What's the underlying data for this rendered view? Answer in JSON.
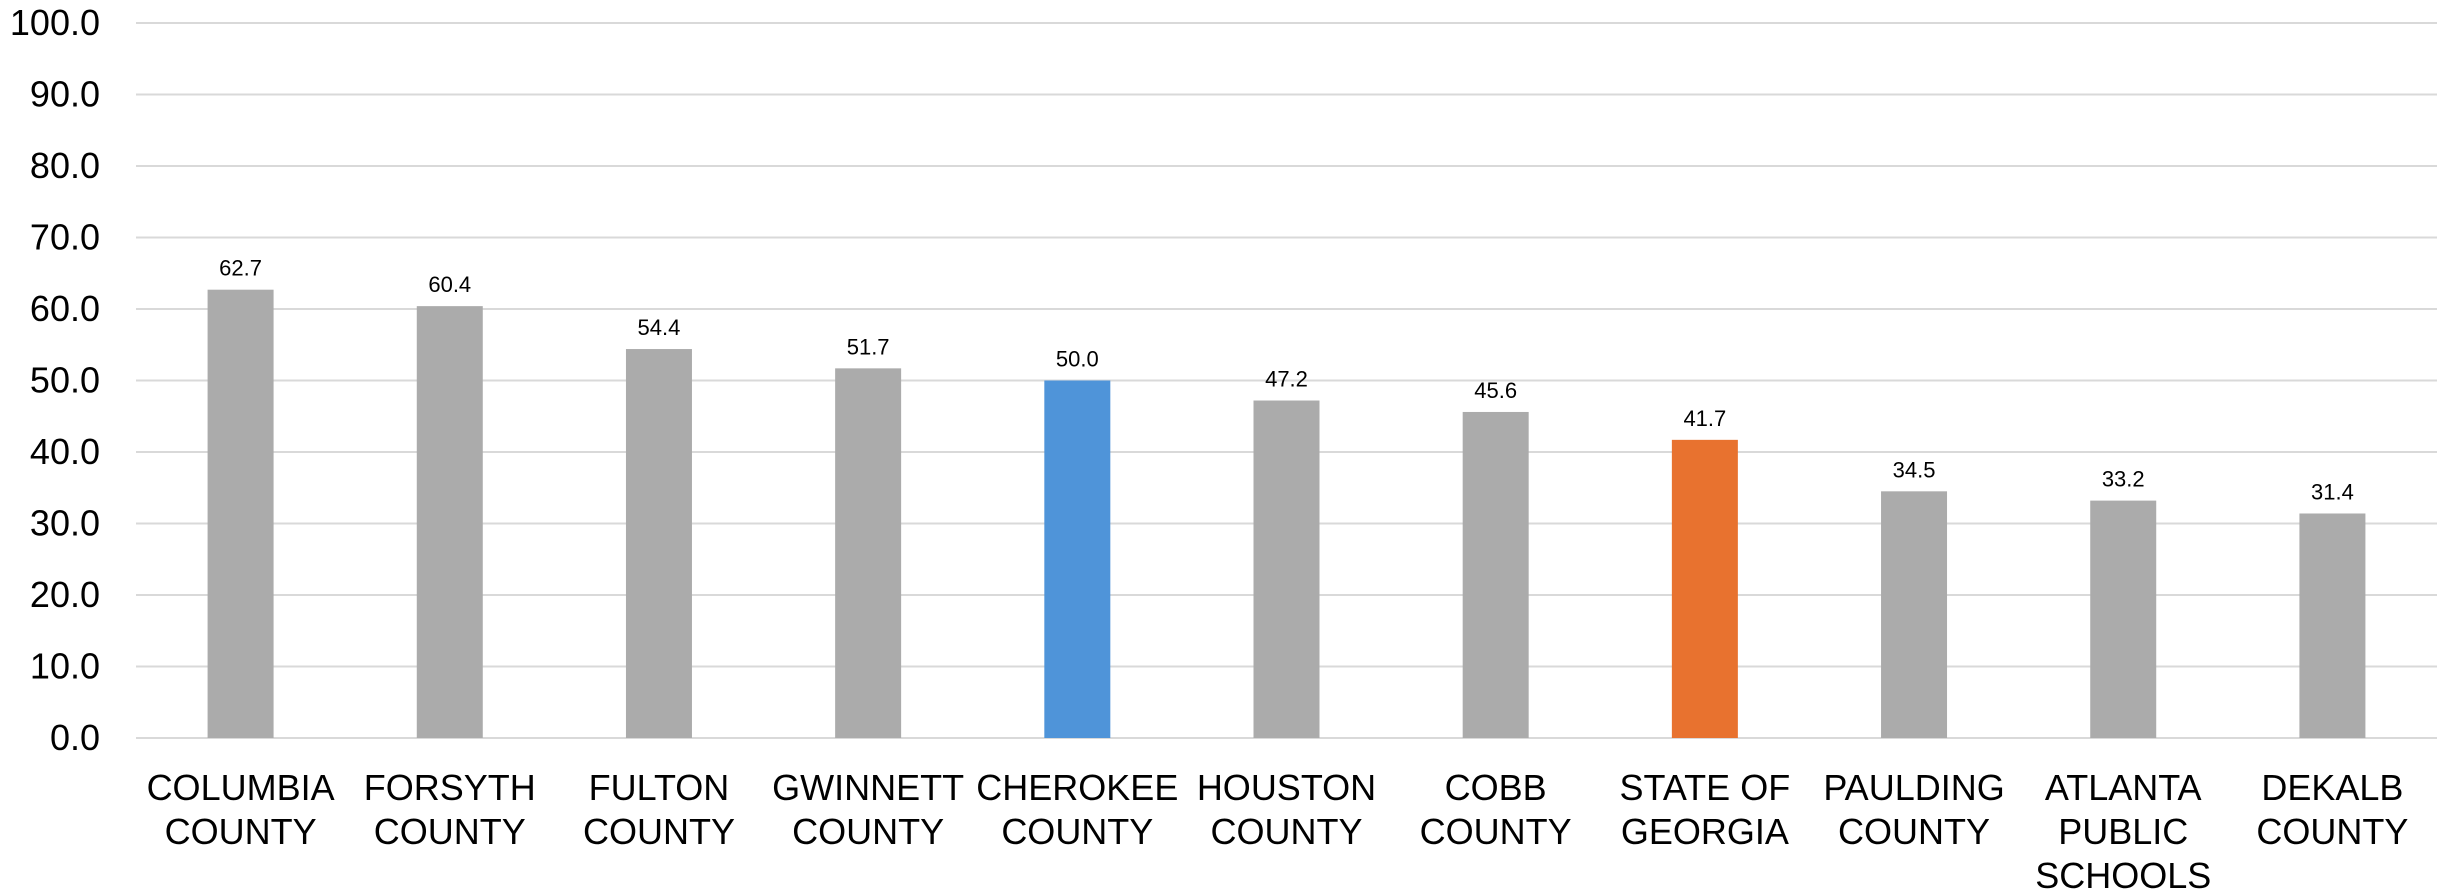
{
  "chart_data": {
    "type": "bar",
    "title": "",
    "xlabel": "",
    "ylabel": "",
    "ylim": [
      0,
      100
    ],
    "y_ticks": [
      "0.0",
      "10.0",
      "20.0",
      "30.0",
      "40.0",
      "50.0",
      "60.0",
      "70.0",
      "80.0",
      "90.0",
      "100.0"
    ],
    "grid": true,
    "categories": [
      [
        "COLUMBIA",
        "COUNTY"
      ],
      [
        "FORSYTH",
        "COUNTY"
      ],
      [
        "FULTON",
        "COUNTY"
      ],
      [
        "GWINNETT",
        "COUNTY"
      ],
      [
        "CHEROKEE",
        "COUNTY"
      ],
      [
        "HOUSTON",
        "COUNTY"
      ],
      [
        "COBB",
        "COUNTY"
      ],
      [
        "STATE OF",
        "GEORGIA"
      ],
      [
        "PAULDING",
        "COUNTY"
      ],
      [
        "ATLANTA",
        "PUBLIC",
        "SCHOOLS"
      ],
      [
        "DEKALB",
        "COUNTY"
      ]
    ],
    "values": [
      62.7,
      60.4,
      54.4,
      51.7,
      50.0,
      47.2,
      45.6,
      41.7,
      34.5,
      33.2,
      31.4
    ],
    "value_labels": [
      "62.7",
      "60.4",
      "54.4",
      "51.7",
      "50.0",
      "47.2",
      "45.6",
      "41.7",
      "34.5",
      "33.2",
      "31.4"
    ],
    "colors": {
      "default": "#ababab",
      "highlight": "#4f94d9",
      "state": "#e8722f",
      "grid": "#d9d9d9"
    },
    "bar_colors": [
      "#ababab",
      "#ababab",
      "#ababab",
      "#ababab",
      "#4f94d9",
      "#ababab",
      "#ababab",
      "#e8722f",
      "#ababab",
      "#ababab",
      "#ababab"
    ]
  }
}
